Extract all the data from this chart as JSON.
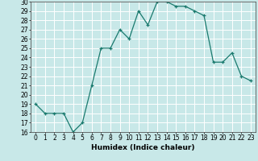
{
  "x": [
    0,
    1,
    2,
    3,
    4,
    5,
    6,
    7,
    8,
    9,
    10,
    11,
    12,
    13,
    14,
    15,
    16,
    17,
    18,
    19,
    20,
    21,
    22,
    23
  ],
  "y": [
    19,
    18,
    18,
    18,
    16,
    17,
    21,
    25,
    25,
    27,
    26,
    29,
    27.5,
    30,
    30,
    29.5,
    29.5,
    29,
    28.5,
    23.5,
    23.5,
    24.5,
    22,
    21.5
  ],
  "xlabel": "Humidex (Indice chaleur)",
  "ylim": [
    16,
    30
  ],
  "xlim": [
    -0.5,
    23.5
  ],
  "yticks": [
    16,
    17,
    18,
    19,
    20,
    21,
    22,
    23,
    24,
    25,
    26,
    27,
    28,
    29,
    30
  ],
  "xticks": [
    0,
    1,
    2,
    3,
    4,
    5,
    6,
    7,
    8,
    9,
    10,
    11,
    12,
    13,
    14,
    15,
    16,
    17,
    18,
    19,
    20,
    21,
    22,
    23
  ],
  "line_color": "#1a7a6e",
  "marker_color": "#1a7a6e",
  "bg_color": "#c8e8e8",
  "grid_color": "#e8f8f8",
  "label_fontsize": 6.5,
  "tick_fontsize": 5.5
}
